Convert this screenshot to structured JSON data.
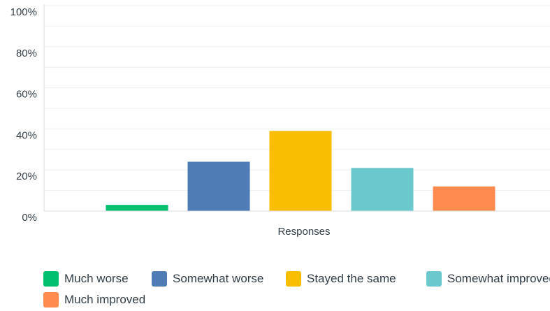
{
  "chart_data": {
    "type": "bar",
    "xlabel": "Responses",
    "ylabel": "",
    "title": "",
    "ylim": [
      0,
      100
    ],
    "yticks": [
      "0%",
      "20%",
      "40%",
      "60%",
      "80%",
      "100%"
    ],
    "grid": true,
    "legend_position": "bottom",
    "series": [
      {
        "name": "Much worse",
        "value": 3,
        "color": "#00bf6f"
      },
      {
        "name": "Somewhat worse",
        "value": 24,
        "color": "#507cb6"
      },
      {
        "name": "Stayed the same",
        "value": 39,
        "color": "#f9be00"
      },
      {
        "name": "Somewhat improved",
        "value": 21,
        "color": "#6bc8cd"
      },
      {
        "name": "Much improved",
        "value": 12,
        "color": "#ff8b4f"
      }
    ]
  }
}
